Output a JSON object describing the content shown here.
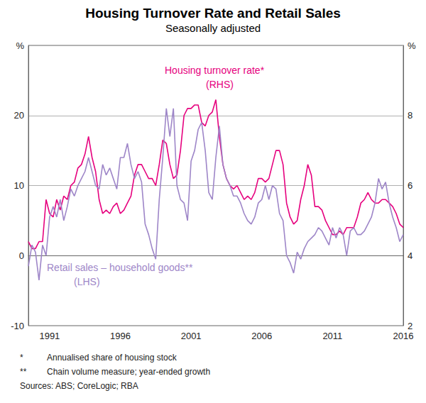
{
  "chart_data": {
    "type": "line",
    "title": "Housing Turnover Rate and Retail Sales",
    "subtitle": "Seasonally adjusted",
    "categories": [
      null,
      null,
      null,
      null,
      null,
      null,
      "1991",
      null,
      null,
      null,
      null,
      null,
      null,
      null,
      null,
      null,
      null,
      null,
      null,
      null,
      null,
      null,
      null,
      null,
      null,
      null,
      "1996",
      null,
      null,
      null,
      null,
      null,
      null,
      null,
      null,
      null,
      null,
      null,
      null,
      null,
      null,
      null,
      null,
      null,
      null,
      null,
      "2001",
      null,
      null,
      null,
      null,
      null,
      null,
      null,
      null,
      null,
      null,
      null,
      null,
      null,
      null,
      null,
      null,
      null,
      null,
      null,
      "2006",
      null,
      null,
      null,
      null,
      null,
      null,
      null,
      null,
      null,
      null,
      null,
      null,
      null,
      null,
      null,
      null,
      null,
      null,
      null,
      "2011",
      null,
      null,
      null,
      null,
      null,
      null,
      null,
      null,
      null,
      null,
      null,
      null,
      null,
      null,
      null,
      null,
      null,
      null,
      null,
      "2016"
    ],
    "series": [
      {
        "name": "Housing turnover rate*",
        "note": "(RHS)",
        "color": "#e6007e",
        "axis": "y2",
        "values": [
          4.4,
          4.2,
          4.2,
          4.4,
          4.4,
          5.6,
          5.2,
          5.1,
          5.6,
          5.3,
          5.7,
          5.6,
          6.0,
          6.1,
          6.5,
          6.6,
          6.9,
          7.4,
          6.8,
          6.4,
          5.6,
          5.2,
          5.3,
          5.2,
          5.4,
          5.5,
          5.2,
          5.3,
          5.5,
          5.7,
          6.3,
          6.6,
          6.6,
          6.4,
          6.2,
          6.2,
          6.0,
          6.6,
          7.3,
          7.2,
          6.6,
          6.2,
          6.3,
          7.0,
          8.0,
          8.2,
          8.2,
          8.3,
          8.3,
          7.8,
          7.7,
          8.0,
          8.1,
          8.45,
          7.4,
          6.6,
          6.2,
          6.0,
          5.9,
          6.0,
          5.8,
          5.6,
          5.7,
          5.6,
          5.8,
          6.2,
          6.2,
          6.1,
          6.2,
          6.6,
          7.0,
          7.0,
          6.6,
          5.5,
          5.1,
          4.9,
          5.0,
          5.6,
          6.0,
          6.6,
          6.3,
          5.4,
          5.4,
          5.3,
          5.0,
          4.8,
          4.6,
          4.6,
          4.7,
          4.6,
          4.8,
          4.8,
          4.8,
          5.1,
          5.5,
          5.6,
          5.8,
          5.6,
          5.5,
          5.5,
          5.6,
          5.6,
          5.5,
          5.4,
          5.2,
          4.9,
          4.8
        ]
      },
      {
        "name": "Retail sales – household goods**",
        "note": "(LHS)",
        "color": "#9e86c8",
        "values": [
          -1.5,
          1.5,
          0.5,
          -3.5,
          1.5,
          0,
          5.5,
          7,
          5.5,
          8,
          5,
          7,
          9.5,
          8.5,
          10,
          11,
          12,
          14,
          12,
          10,
          9.5,
          13,
          11.5,
          12.5,
          11,
          9.5,
          14,
          14,
          16,
          13,
          11,
          12,
          10.5,
          4.5,
          3,
          1,
          -0.5,
          8,
          14,
          21,
          17,
          21,
          10,
          8,
          7.5,
          5,
          13.5,
          15,
          18,
          19,
          15,
          9,
          8,
          14,
          18.5,
          13,
          11,
          10,
          8.5,
          8.5,
          7.5,
          6,
          5,
          4.5,
          5.5,
          7.5,
          8,
          10,
          8,
          10,
          9.5,
          6,
          5,
          0,
          -1,
          -2.5,
          0.5,
          -0.5,
          1,
          2,
          2.5,
          3,
          4,
          3.5,
          2.5,
          1.5,
          4,
          2.5,
          4,
          3,
          0,
          3.5,
          4,
          3,
          3,
          3.5,
          4.5,
          5.5,
          7.5,
          11,
          9.5,
          10.5,
          7.5,
          5.5,
          4,
          2,
          3
        ]
      }
    ],
    "ylim": [
      -10,
      30
    ],
    "yticks": [
      -10,
      0,
      10,
      20,
      {
        "value": 30,
        "label": "%"
      }
    ],
    "y2lim": [
      2,
      10
    ],
    "y2ticks": [
      2,
      4,
      6,
      8,
      {
        "value": 10,
        "label": "%"
      }
    ],
    "grid": true,
    "notes": [
      {
        "marker": "*",
        "text": "Annualised share of housing stock"
      },
      {
        "marker": "**",
        "text": "Chain volume measure; year-ended growth"
      }
    ],
    "source": "Sources: ABS; CoreLogic; RBA"
  }
}
